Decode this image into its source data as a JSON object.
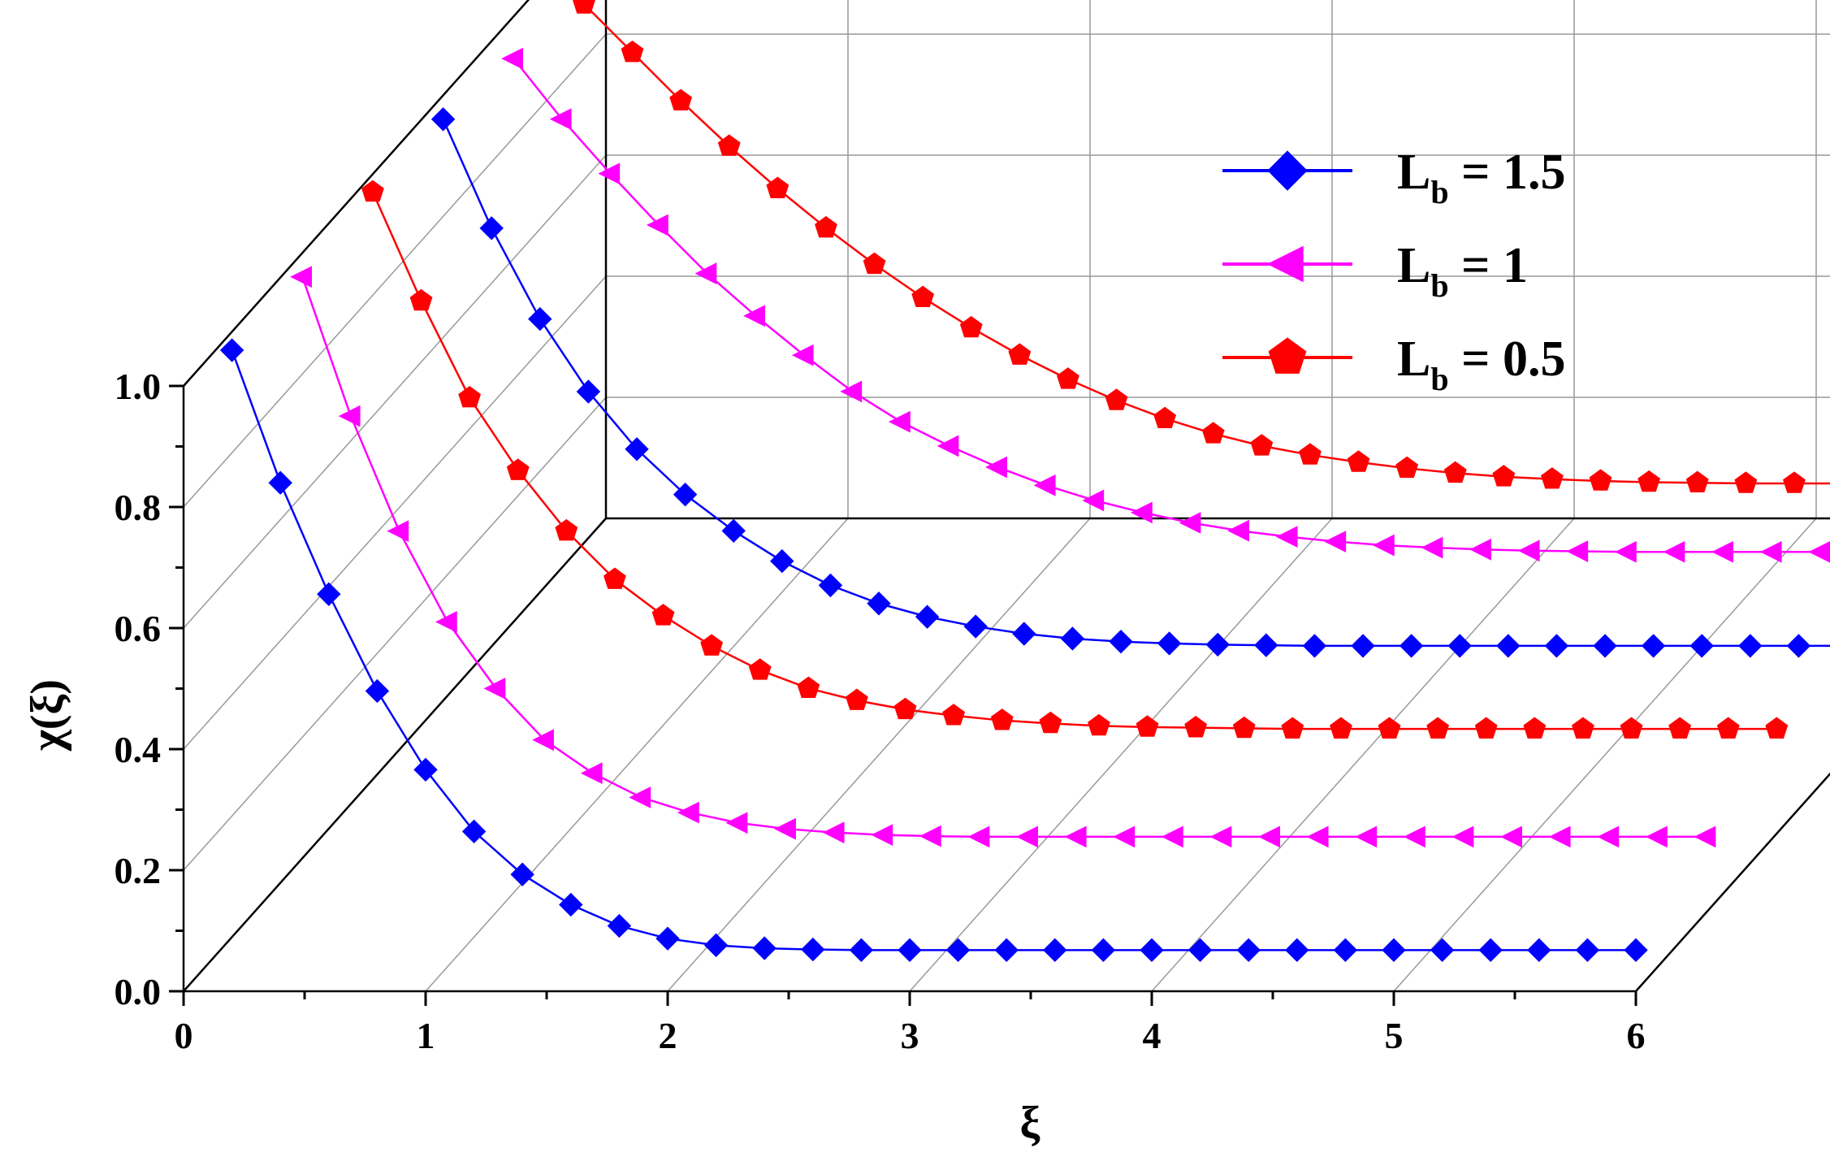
{
  "chart_data": {
    "type": "line",
    "xlabel": "ξ",
    "ylabel": "χ(ξ)",
    "xlim": [
      0,
      6
    ],
    "ylim": [
      0,
      1.0
    ],
    "x_ticks": [
      "0",
      "1",
      "2",
      "3",
      "4",
      "5",
      "6"
    ],
    "y_ticks": [
      "0.0",
      "0.2",
      "0.4",
      "0.6",
      "0.8",
      "1.0"
    ],
    "grid": true,
    "legend_position": "top-right",
    "x": [
      0.2,
      0.4,
      0.6,
      0.8,
      1.0,
      1.2,
      1.4,
      1.6,
      1.8,
      2.0,
      2.2,
      2.4,
      2.6,
      2.8,
      3.0,
      3.2,
      3.4,
      3.6,
      3.8,
      4.0,
      4.2,
      4.4,
      4.6,
      4.8,
      5.0,
      5.2,
      5.4,
      5.6,
      5.8,
      6.0
    ],
    "series": [
      {
        "name": "L_b = 1.5",
        "legend_main": "L",
        "legend_sub": "b",
        "legend_rest": " = 1.5",
        "color": "#0000ff",
        "marker": "diamond",
        "depth": 0,
        "values": [
          1.059,
          0.84,
          0.656,
          0.496,
          0.366,
          0.264,
          0.193,
          0.143,
          0.108,
          0.087,
          0.076,
          0.071,
          0.069,
          0.068,
          0.068,
          0.068,
          0.068,
          0.068,
          0.068,
          0.068,
          0.068,
          0.068,
          0.068,
          0.068,
          0.068,
          0.068,
          0.068,
          0.068,
          0.068,
          0.068
        ]
      },
      {
        "name": "L_b = 1",
        "legend_main": "L",
        "legend_sub": "b",
        "legend_rest": " = 1",
        "color": "#ff00ff",
        "marker": "triangle-left",
        "depth": 1,
        "values": [
          1.05,
          0.82,
          0.63,
          0.48,
          0.37,
          0.285,
          0.23,
          0.19,
          0.165,
          0.148,
          0.138,
          0.132,
          0.128,
          0.126,
          0.125,
          0.125,
          0.125,
          0.125,
          0.125,
          0.125,
          0.125,
          0.125,
          0.125,
          0.125,
          0.125,
          0.125,
          0.125,
          0.125,
          0.125,
          0.125
        ]
      },
      {
        "name": "L_b = 0.5",
        "legend_main": "L",
        "legend_sub": "b",
        "legend_rest": " = 0.5",
        "color": "#ff0000",
        "marker": "pentagon",
        "depth": 2,
        "values": [
          1.06,
          0.88,
          0.72,
          0.6,
          0.5,
          0.42,
          0.36,
          0.31,
          0.27,
          0.24,
          0.22,
          0.205,
          0.195,
          0.187,
          0.182,
          0.178,
          0.176,
          0.175,
          0.174,
          0.173,
          0.173,
          0.173,
          0.173,
          0.173,
          0.173,
          0.173,
          0.173,
          0.173,
          0.173,
          0.173
        ]
      },
      {
        "name": "L_b = 1.5",
        "color": "#0000ff",
        "marker": "diamond",
        "depth": 3,
        "values": [
          1.05,
          0.87,
          0.72,
          0.6,
          0.505,
          0.43,
          0.37,
          0.32,
          0.28,
          0.25,
          0.228,
          0.212,
          0.2,
          0.192,
          0.187,
          0.184,
          0.182,
          0.181,
          0.18,
          0.18,
          0.18,
          0.18,
          0.18,
          0.18,
          0.18,
          0.18,
          0.18,
          0.18,
          0.18,
          0.18
        ]
      },
      {
        "name": "L_b = 1",
        "color": "#ff00ff",
        "marker": "triangle-left",
        "depth": 4,
        "values": [
          1.02,
          0.92,
          0.83,
          0.745,
          0.665,
          0.595,
          0.53,
          0.47,
          0.42,
          0.38,
          0.345,
          0.315,
          0.29,
          0.27,
          0.253,
          0.24,
          0.23,
          0.222,
          0.216,
          0.212,
          0.209,
          0.207,
          0.206,
          0.205,
          0.205,
          0.205,
          0.205,
          0.205,
          0.205,
          0.205
        ]
      },
      {
        "name": "L_b = 0.5",
        "color": "#ff0000",
        "marker": "pentagon",
        "depth": 5,
        "values": [
          0.98,
          0.9,
          0.82,
          0.745,
          0.675,
          0.61,
          0.55,
          0.495,
          0.445,
          0.4,
          0.36,
          0.325,
          0.295,
          0.27,
          0.25,
          0.235,
          0.223,
          0.213,
          0.205,
          0.199,
          0.195,
          0.192,
          0.19,
          0.189,
          0.188,
          0.188,
          0.188,
          0.188,
          0.188,
          0.188
        ]
      }
    ]
  }
}
